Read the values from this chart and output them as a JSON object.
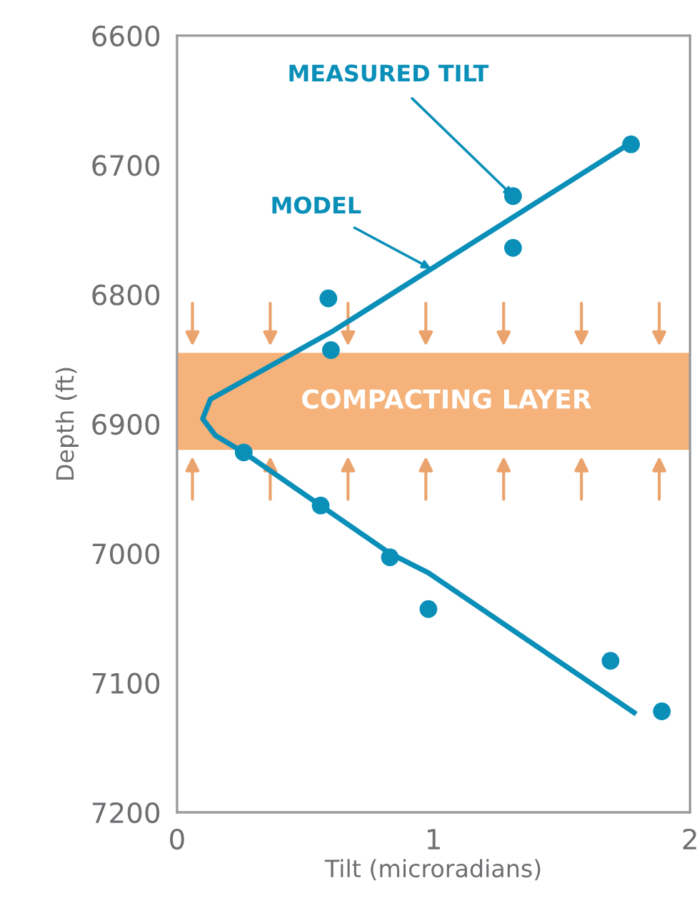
{
  "chart_data": {
    "type": "scatter",
    "xlabel": "Tilt (microradians)",
    "ylabel": "Depth (ft)",
    "xlim": [
      0,
      2
    ],
    "xticks": [
      0,
      1,
      2
    ],
    "ylim": [
      7200,
      6600
    ],
    "yticks": [
      6600,
      6700,
      6800,
      6900,
      7000,
      7100,
      7200
    ],
    "grid": false,
    "series": [
      {
        "marker": "circle",
        "color": "#0a8fb8",
        "x": [
          1.77,
          1.31,
          1.31,
          0.59,
          0.6,
          0.26,
          0.56,
          0.83,
          0.98,
          1.69,
          1.89
        ],
        "values": [
          6684,
          6724,
          6764,
          6803,
          6843,
          6922,
          6963,
          7003,
          7043,
          7083,
          7122
        ]
      },
      {
        "type": "line",
        "color": "#0a8fb8",
        "x": [
          1.76,
          0.61,
          0.13,
          0.1,
          0.15,
          0.26,
          0.56,
          0.83,
          0.98,
          1.79
        ],
        "values": [
          6684,
          6828,
          6881,
          6896,
          6909,
          6922,
          6963,
          7000,
          7015,
          7124
        ]
      }
    ],
    "bands": [
      {
        "axis": "y",
        "from": 6845,
        "to": 6920,
        "label": "COMPACTING LAYER",
        "color": "#f5b27a"
      }
    ],
    "annotations": [
      {
        "text": "MEASURED TILT",
        "x": 1.31,
        "y": 6724
      },
      {
        "text": "MODEL",
        "x": 0.99,
        "y": 6780
      }
    ]
  }
}
